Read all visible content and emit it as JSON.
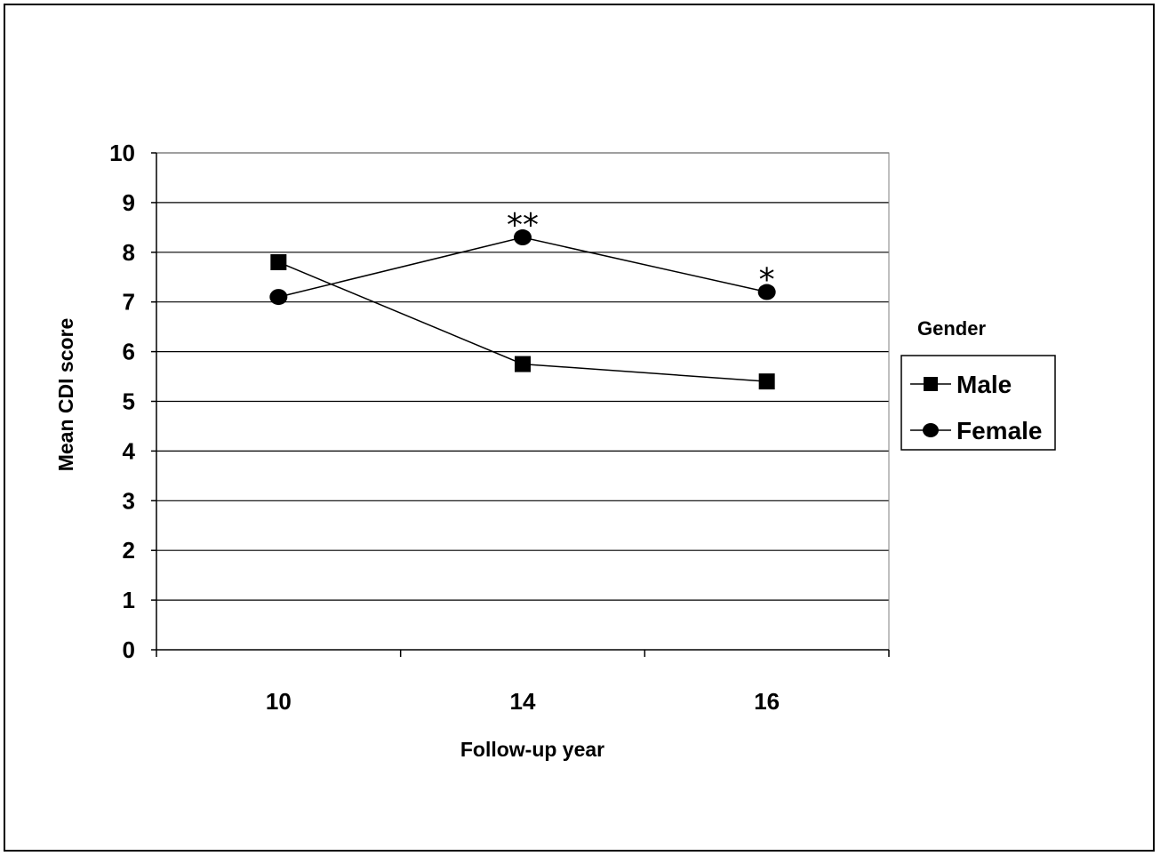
{
  "chart_data": {
    "type": "line",
    "title": "",
    "xlabel": "Follow-up year",
    "ylabel": "Mean CDI score",
    "categories": [
      "10",
      "14",
      "16"
    ],
    "ylim": [
      0,
      10
    ],
    "yticks": [
      "0",
      "1",
      "2",
      "3",
      "4",
      "5",
      "6",
      "7",
      "8",
      "9",
      "10"
    ],
    "grid": true,
    "legend": {
      "title": "Gender",
      "placement": "right"
    },
    "series": [
      {
        "name": "Male",
        "marker": "square",
        "values": [
          7.8,
          5.75,
          5.4
        ]
      },
      {
        "name": "Female",
        "marker": "circle",
        "values": [
          7.1,
          8.3,
          7.2
        ]
      }
    ],
    "annotations": [
      {
        "category": "14",
        "text": "**"
      },
      {
        "category": "16",
        "text": "*"
      }
    ]
  },
  "colors": {
    "line": "#000000",
    "marker": "#000000",
    "grid": "#000000"
  }
}
